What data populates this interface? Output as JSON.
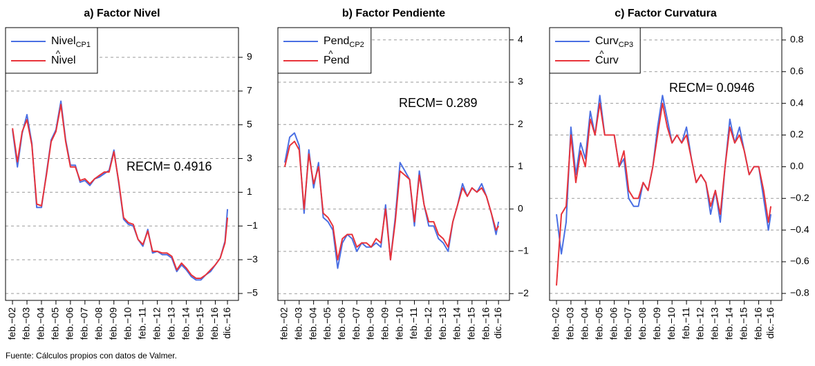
{
  "chart_data": [
    {
      "type": "line",
      "title": "a) Factor Nivel",
      "annotation": "RECM= 0.4916",
      "x": [
        2002.08,
        2002.42,
        2002.75,
        2003.08,
        2003.42,
        2003.75,
        2004.08,
        2004.42,
        2004.75,
        2005.08,
        2005.42,
        2005.75,
        2006.08,
        2006.42,
        2006.75,
        2007.08,
        2007.42,
        2007.75,
        2008.08,
        2008.42,
        2008.75,
        2009.08,
        2009.42,
        2009.75,
        2010.08,
        2010.42,
        2010.75,
        2011.08,
        2011.42,
        2011.75,
        2012.08,
        2012.42,
        2012.75,
        2013.08,
        2013.42,
        2013.75,
        2014.08,
        2014.42,
        2014.75,
        2015.08,
        2015.42,
        2015.75,
        2016.08,
        2016.42,
        2016.75,
        2016.92
      ],
      "series": [
        {
          "name": "Nivel",
          "subscript": "CP1",
          "color": "#4a6fe3",
          "values": [
            4.7,
            2.5,
            4.5,
            5.6,
            3.9,
            0.1,
            0.1,
            2.1,
            4.1,
            4.7,
            6.4,
            4.1,
            2.6,
            2.6,
            1.6,
            1.7,
            1.4,
            1.8,
            1.9,
            2.1,
            2.3,
            3.5,
            1.5,
            -0.6,
            -0.9,
            -1.0,
            -1.8,
            -2.2,
            -1.2,
            -2.6,
            -2.5,
            -2.7,
            -2.7,
            -2.9,
            -3.7,
            -3.3,
            -3.6,
            -4.0,
            -4.2,
            -4.2,
            -3.9,
            -3.7,
            -3.3,
            -2.9,
            -1.9,
            0.0
          ]
        },
        {
          "name": "Nivel",
          "hat": true,
          "color": "#e8333a",
          "values": [
            4.8,
            2.8,
            4.6,
            5.3,
            3.8,
            0.3,
            0.2,
            2.0,
            4.0,
            4.6,
            6.2,
            4.0,
            2.5,
            2.5,
            1.7,
            1.8,
            1.5,
            1.8,
            2.0,
            2.2,
            2.2,
            3.4,
            1.6,
            -0.5,
            -0.8,
            -0.9,
            -1.8,
            -2.1,
            -1.3,
            -2.5,
            -2.5,
            -2.6,
            -2.6,
            -2.8,
            -3.6,
            -3.2,
            -3.5,
            -3.9,
            -4.1,
            -4.1,
            -3.9,
            -3.6,
            -3.3,
            -2.9,
            -2.0,
            -0.5
          ]
        }
      ],
      "xlim": [
        2001.6,
        2017.68
      ],
      "xticks": [
        {
          "value": 2002.08,
          "label": "feb.−02"
        },
        {
          "value": 2003.08,
          "label": "feb.−03"
        },
        {
          "value": 2004.08,
          "label": "feb.−04"
        },
        {
          "value": 2005.08,
          "label": "feb.−05"
        },
        {
          "value": 2006.08,
          "label": "feb.−06"
        },
        {
          "value": 2007.08,
          "label": "feb.−07"
        },
        {
          "value": 2008.08,
          "label": "feb.−08"
        },
        {
          "value": 2009.08,
          "label": "feb.−09"
        },
        {
          "value": 2010.08,
          "label": "feb.−10"
        },
        {
          "value": 2011.08,
          "label": "feb.−11"
        },
        {
          "value": 2012.08,
          "label": "feb.−12"
        },
        {
          "value": 2013.08,
          "label": "feb.−13"
        },
        {
          "value": 2014.08,
          "label": "feb.−14"
        },
        {
          "value": 2015.08,
          "label": "feb.−15"
        },
        {
          "value": 2016.08,
          "label": "feb.−16"
        },
        {
          "value": 2016.92,
          "label": "dic.−16"
        }
      ],
      "ylim": [
        -5.41,
        10.76
      ],
      "yticks": [
        9,
        7,
        5,
        3,
        1,
        {
          "value": -1,
          "label": "−1"
        },
        {
          "value": -3,
          "label": "−3"
        },
        {
          "value": -5,
          "label": "−5"
        }
      ],
      "grid": true,
      "legend": "top-left"
    },
    {
      "type": "line",
      "title": "b) Factor Pendiente",
      "annotation": "RECM= 0.289",
      "x": [
        2002.08,
        2002.42,
        2002.75,
        2003.08,
        2003.42,
        2003.75,
        2004.08,
        2004.42,
        2004.75,
        2005.08,
        2005.42,
        2005.75,
        2006.08,
        2006.42,
        2006.75,
        2007.08,
        2007.42,
        2007.75,
        2008.08,
        2008.42,
        2008.75,
        2009.08,
        2009.42,
        2009.75,
        2010.08,
        2010.42,
        2010.75,
        2011.08,
        2011.42,
        2011.75,
        2012.08,
        2012.42,
        2012.75,
        2013.08,
        2013.42,
        2013.75,
        2014.08,
        2014.42,
        2014.75,
        2015.08,
        2015.42,
        2015.75,
        2016.08,
        2016.42,
        2016.75,
        2016.92
      ],
      "series": [
        {
          "name": "Pend",
          "subscript": "CP2",
          "color": "#4a6fe3",
          "values": [
            1.1,
            1.7,
            1.8,
            1.5,
            -0.1,
            1.4,
            0.5,
            1.1,
            -0.2,
            -0.3,
            -0.5,
            -1.4,
            -0.8,
            -0.6,
            -0.7,
            -1.0,
            -0.8,
            -0.9,
            -0.9,
            -0.8,
            -0.9,
            0.1,
            -1.2,
            -0.2,
            1.1,
            0.9,
            0.7,
            -0.4,
            0.9,
            0.1,
            -0.4,
            -0.4,
            -0.7,
            -0.8,
            -1.0,
            -0.3,
            0.1,
            0.6,
            0.3,
            0.5,
            0.4,
            0.6,
            0.3,
            -0.1,
            -0.6,
            -0.3
          ]
        },
        {
          "name": "Pend",
          "hat": true,
          "color": "#e8333a",
          "values": [
            1.0,
            1.5,
            1.6,
            1.4,
            0.0,
            1.3,
            0.6,
            1.0,
            -0.1,
            -0.2,
            -0.4,
            -1.2,
            -0.7,
            -0.6,
            -0.6,
            -0.9,
            -0.8,
            -0.8,
            -0.9,
            -0.7,
            -0.8,
            0.0,
            -1.2,
            -0.3,
            0.9,
            0.8,
            0.7,
            -0.3,
            0.8,
            0.1,
            -0.3,
            -0.3,
            -0.6,
            -0.7,
            -0.9,
            -0.3,
            0.1,
            0.5,
            0.3,
            0.5,
            0.4,
            0.5,
            0.3,
            -0.1,
            -0.5,
            -0.4
          ]
        }
      ],
      "xlim": [
        2001.6,
        2017.68
      ],
      "xticks": [
        {
          "value": 2002.08,
          "label": "feb.−02"
        },
        {
          "value": 2003.08,
          "label": "feb.−03"
        },
        {
          "value": 2004.08,
          "label": "feb.−04"
        },
        {
          "value": 2005.08,
          "label": "feb.−05"
        },
        {
          "value": 2006.08,
          "label": "feb.−06"
        },
        {
          "value": 2007.08,
          "label": "feb.−07"
        },
        {
          "value": 2008.08,
          "label": "feb.−08"
        },
        {
          "value": 2009.08,
          "label": "feb.−09"
        },
        {
          "value": 2010.08,
          "label": "feb.−10"
        },
        {
          "value": 2011.08,
          "label": "feb.−11"
        },
        {
          "value": 2012.08,
          "label": "feb.−12"
        },
        {
          "value": 2013.08,
          "label": "feb.−13"
        },
        {
          "value": 2014.08,
          "label": "feb.−14"
        },
        {
          "value": 2015.08,
          "label": "feb.−15"
        },
        {
          "value": 2016.08,
          "label": "feb.−16"
        },
        {
          "value": 2016.92,
          "label": "dic.−16"
        }
      ],
      "ylim": [
        -2.16,
        4.29
      ],
      "yticks": [
        4,
        3,
        2,
        1,
        0,
        {
          "value": -1,
          "label": "−1"
        },
        {
          "value": -2,
          "label": "−2"
        }
      ],
      "grid": true,
      "legend": "top-left"
    },
    {
      "type": "line",
      "title": "c) Factor Curvatura",
      "annotation": "RECM= 0.0946",
      "x": [
        2002.08,
        2002.42,
        2002.75,
        2003.08,
        2003.42,
        2003.75,
        2004.08,
        2004.42,
        2004.75,
        2005.08,
        2005.42,
        2005.75,
        2006.08,
        2006.42,
        2006.75,
        2007.08,
        2007.42,
        2007.75,
        2008.08,
        2008.42,
        2008.75,
        2009.08,
        2009.42,
        2009.75,
        2010.08,
        2010.42,
        2010.75,
        2011.08,
        2011.42,
        2011.75,
        2012.08,
        2012.42,
        2012.75,
        2013.08,
        2013.42,
        2013.75,
        2014.08,
        2014.42,
        2014.75,
        2015.08,
        2015.42,
        2015.75,
        2016.08,
        2016.42,
        2016.75,
        2016.92
      ],
      "series": [
        {
          "name": "Curv",
          "subscript": "CP3",
          "color": "#4a6fe3",
          "values": [
            -0.3,
            -0.55,
            -0.35,
            0.25,
            -0.05,
            0.15,
            0.05,
            0.35,
            0.2,
            0.45,
            0.2,
            0.2,
            0.2,
            0.0,
            0.05,
            -0.2,
            -0.25,
            -0.25,
            -0.1,
            -0.15,
            0.0,
            0.25,
            0.45,
            0.3,
            0.15,
            0.2,
            0.15,
            0.25,
            0.05,
            -0.1,
            -0.05,
            -0.1,
            -0.3,
            -0.15,
            -0.35,
            0.0,
            0.3,
            0.15,
            0.25,
            0.1,
            -0.05,
            0.0,
            0.0,
            -0.2,
            -0.4,
            -0.3
          ]
        },
        {
          "name": "Curv",
          "hat": true,
          "color": "#e8333a",
          "values": [
            -0.75,
            -0.3,
            -0.25,
            0.2,
            -0.1,
            0.1,
            0.0,
            0.3,
            0.2,
            0.4,
            0.2,
            0.2,
            0.2,
            0.0,
            0.1,
            -0.15,
            -0.2,
            -0.2,
            -0.1,
            -0.15,
            0.0,
            0.2,
            0.4,
            0.25,
            0.15,
            0.2,
            0.15,
            0.2,
            0.05,
            -0.1,
            -0.05,
            -0.1,
            -0.25,
            -0.15,
            -0.3,
            0.0,
            0.25,
            0.15,
            0.2,
            0.1,
            -0.05,
            0.0,
            0.0,
            -0.15,
            -0.35,
            -0.25
          ]
        }
      ],
      "xlim": [
        2001.6,
        2017.68
      ],
      "xticks": [
        {
          "value": 2002.08,
          "label": "feb.−02"
        },
        {
          "value": 2003.08,
          "label": "feb.−03"
        },
        {
          "value": 2004.08,
          "label": "feb.−04"
        },
        {
          "value": 2005.08,
          "label": "feb.−05"
        },
        {
          "value": 2006.08,
          "label": "feb.−06"
        },
        {
          "value": 2007.08,
          "label": "feb.−07"
        },
        {
          "value": 2008.08,
          "label": "feb.−08"
        },
        {
          "value": 2009.08,
          "label": "feb.−09"
        },
        {
          "value": 2010.08,
          "label": "feb.−10"
        },
        {
          "value": 2011.08,
          "label": "feb.−11"
        },
        {
          "value": 2012.08,
          "label": "feb.−12"
        },
        {
          "value": 2013.08,
          "label": "feb.−13"
        },
        {
          "value": 2014.08,
          "label": "feb.−14"
        },
        {
          "value": 2015.08,
          "label": "feb.−15"
        },
        {
          "value": 2016.08,
          "label": "feb.−16"
        },
        {
          "value": 2016.92,
          "label": "dic.−16"
        }
      ],
      "ylim": [
        -0.844,
        0.878
      ],
      "yticks": [
        0.8,
        0.6,
        0.4,
        0.2,
        {
          "value": 0,
          "label": "0.0"
        },
        {
          "value": -0.2,
          "label": "−0.2"
        },
        {
          "value": -0.4,
          "label": "−0.4"
        },
        {
          "value": -0.6,
          "label": "−0.6"
        },
        {
          "value": -0.8,
          "label": "−0.8"
        }
      ],
      "grid": true,
      "legend": "top-left"
    }
  ],
  "source": "Fuente: Cálculos propios con datos de Valmer."
}
